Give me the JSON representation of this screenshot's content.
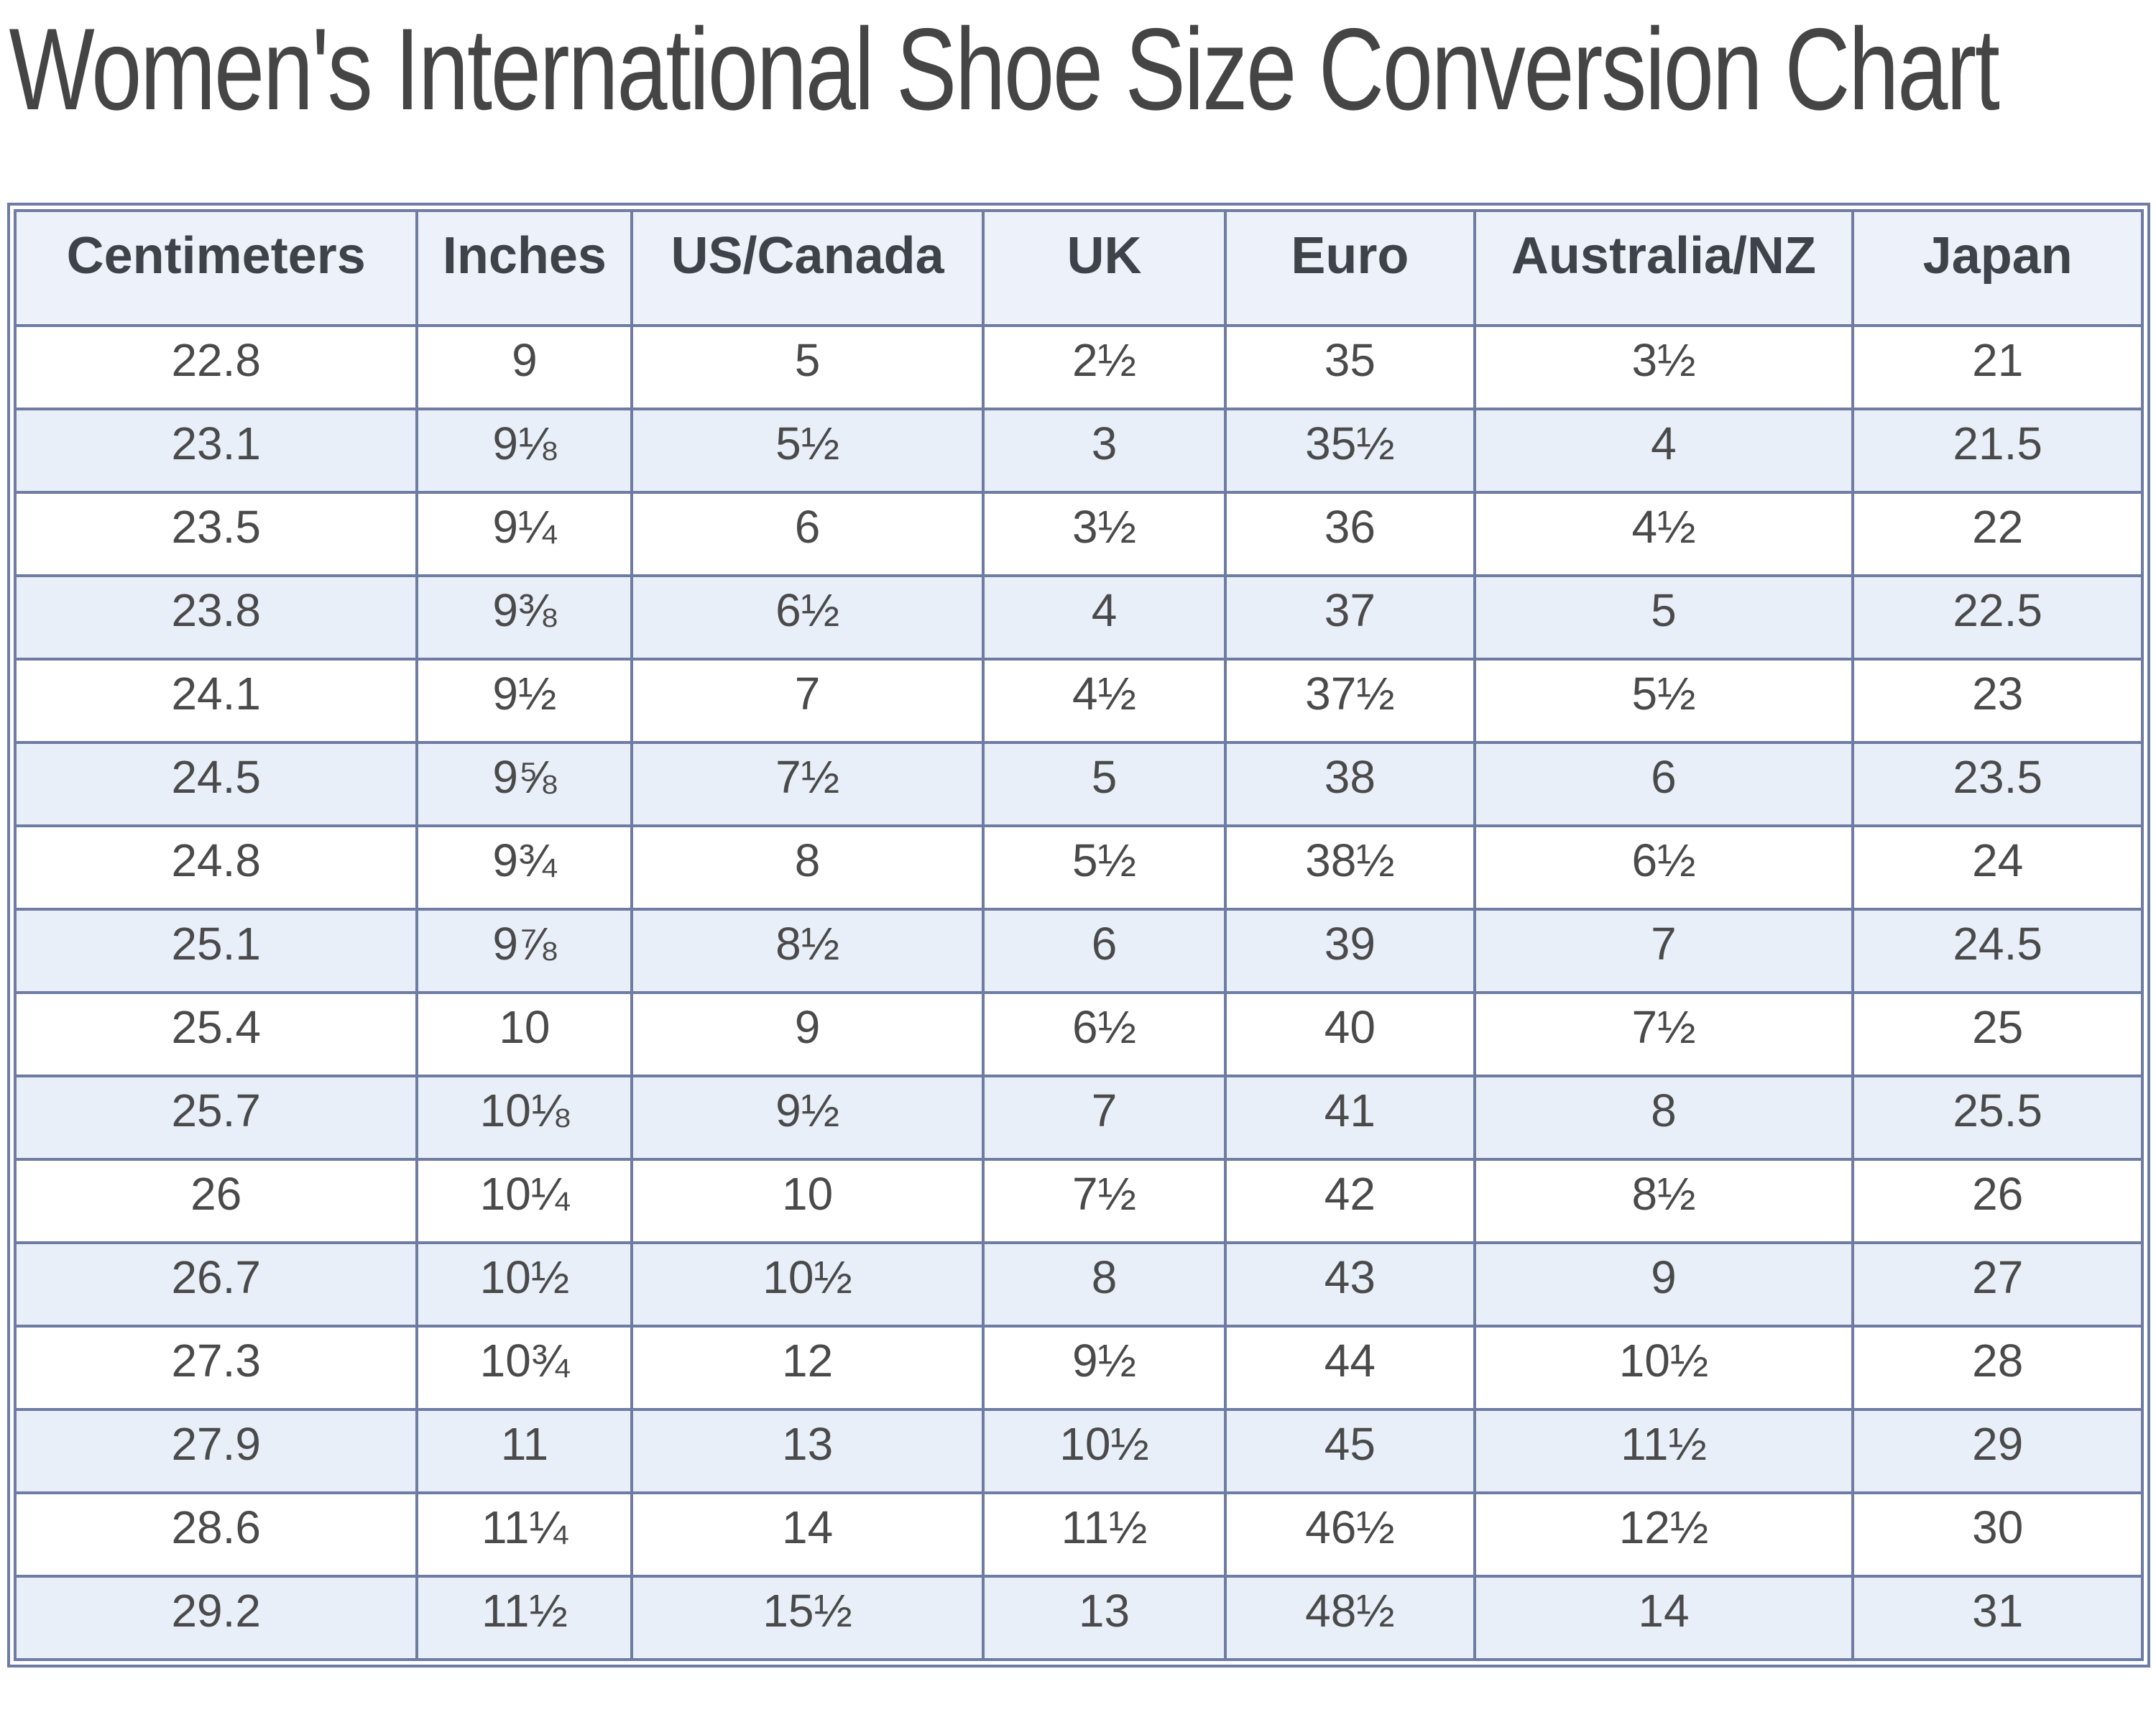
{
  "page_title": "Women's International Shoe Size Conversion Chart",
  "colors": {
    "grid_border": "#6e7ba3",
    "header_bg": "#edf1f9",
    "row_alt_bg": "#e9eff9",
    "row_bg": "#ffffff",
    "header_text": "#3e4349",
    "cell_text": "#4a4a4a",
    "title_text": "#454545"
  },
  "chart_data": {
    "type": "table",
    "title": "Women's International Shoe Size Conversion Chart",
    "columns": [
      "Centimeters",
      "Inches",
      "US/Canada",
      "UK",
      "Euro",
      "Australia/NZ",
      "Japan"
    ],
    "rows": [
      [
        "22.8",
        "9",
        "5",
        "2½",
        "35",
        "3½",
        "21"
      ],
      [
        "23.1",
        "9⅛",
        "5½",
        "3",
        "35½",
        "4",
        "21.5"
      ],
      [
        "23.5",
        "9¼",
        "6",
        "3½",
        "36",
        "4½",
        "22"
      ],
      [
        "23.8",
        "9⅜",
        "6½",
        "4",
        "37",
        "5",
        "22.5"
      ],
      [
        "24.1",
        "9½",
        "7",
        "4½",
        "37½",
        "5½",
        "23"
      ],
      [
        "24.5",
        "9⅝",
        "7½",
        "5",
        "38",
        "6",
        "23.5"
      ],
      [
        "24.8",
        "9¾",
        "8",
        "5½",
        "38½",
        "6½",
        "24"
      ],
      [
        "25.1",
        "9⅞",
        "8½",
        "6",
        "39",
        "7",
        "24.5"
      ],
      [
        "25.4",
        "10",
        "9",
        "6½",
        "40",
        "7½",
        "25"
      ],
      [
        "25.7",
        "10⅛",
        "9½",
        "7",
        "41",
        "8",
        "25.5"
      ],
      [
        "26",
        "10¼",
        "10",
        "7½",
        "42",
        "8½",
        "26"
      ],
      [
        "26.7",
        "10½",
        "10½",
        "8",
        "43",
        "9",
        "27"
      ],
      [
        "27.3",
        "10¾",
        "12",
        "9½",
        "44",
        "10½",
        "28"
      ],
      [
        "27.9",
        "11",
        "13",
        "10½",
        "45",
        "11½",
        "29"
      ],
      [
        "28.6",
        "11¼",
        "14",
        "11½",
        "46½",
        "12½",
        "30"
      ],
      [
        "29.2",
        "11½",
        "15½",
        "13",
        "48½",
        "14",
        "31"
      ]
    ]
  }
}
